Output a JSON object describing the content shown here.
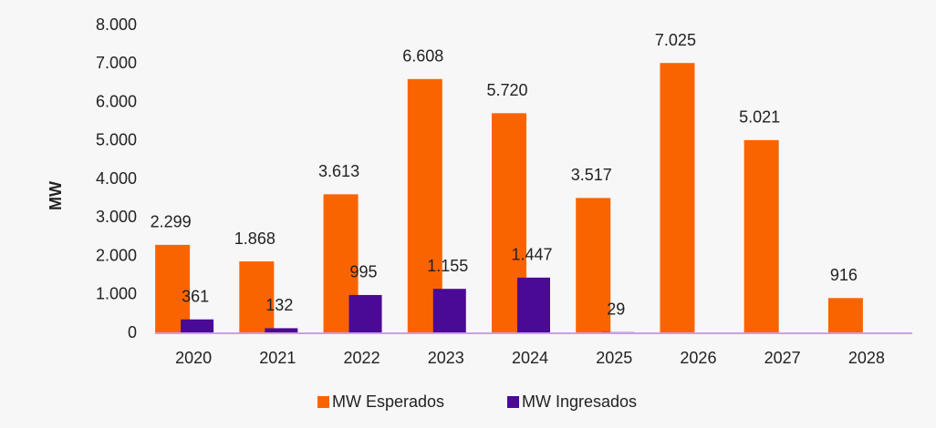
{
  "chart_data": {
    "type": "bar",
    "y_label": "MW",
    "categories": [
      "2020",
      "2021",
      "2022",
      "2023",
      "2024",
      "2025",
      "2026",
      "2027",
      "2028"
    ],
    "series": [
      {
        "name": "MW Esperados",
        "color": "#fa6400",
        "values": [
          2299,
          1868,
          3613,
          6608,
          5720,
          3517,
          7025,
          5021,
          916
        ],
        "value_labels": [
          "2.299",
          "1.868",
          "3.613",
          "6.608",
          "5.720",
          "3.517",
          "7.025",
          "5.021",
          "916"
        ]
      },
      {
        "name": "MW Ingresados",
        "color": "#4b0a96",
        "values": [
          361,
          132,
          995,
          1155,
          1447,
          29,
          null,
          null,
          null
        ],
        "value_labels": [
          "361",
          "132",
          "995",
          "1.155",
          "1.447",
          "29",
          null,
          null,
          null
        ]
      }
    ],
    "ylim": [
      0,
      8000
    ],
    "yticks": [
      0,
      {
        "value": 1000,
        "label": "1.000"
      },
      {
        "value": 2000,
        "label": "2.000"
      },
      {
        "value": 3000,
        "label": "3.000"
      },
      {
        "value": 4000,
        "label": "4.000"
      },
      {
        "value": 5000,
        "label": "5.000"
      },
      {
        "value": 6000,
        "label": "6.000"
      },
      {
        "value": 7000,
        "label": "7.000"
      },
      {
        "value": 8000,
        "label": "8.000"
      }
    ],
    "grid": false,
    "legend": "bottom"
  }
}
